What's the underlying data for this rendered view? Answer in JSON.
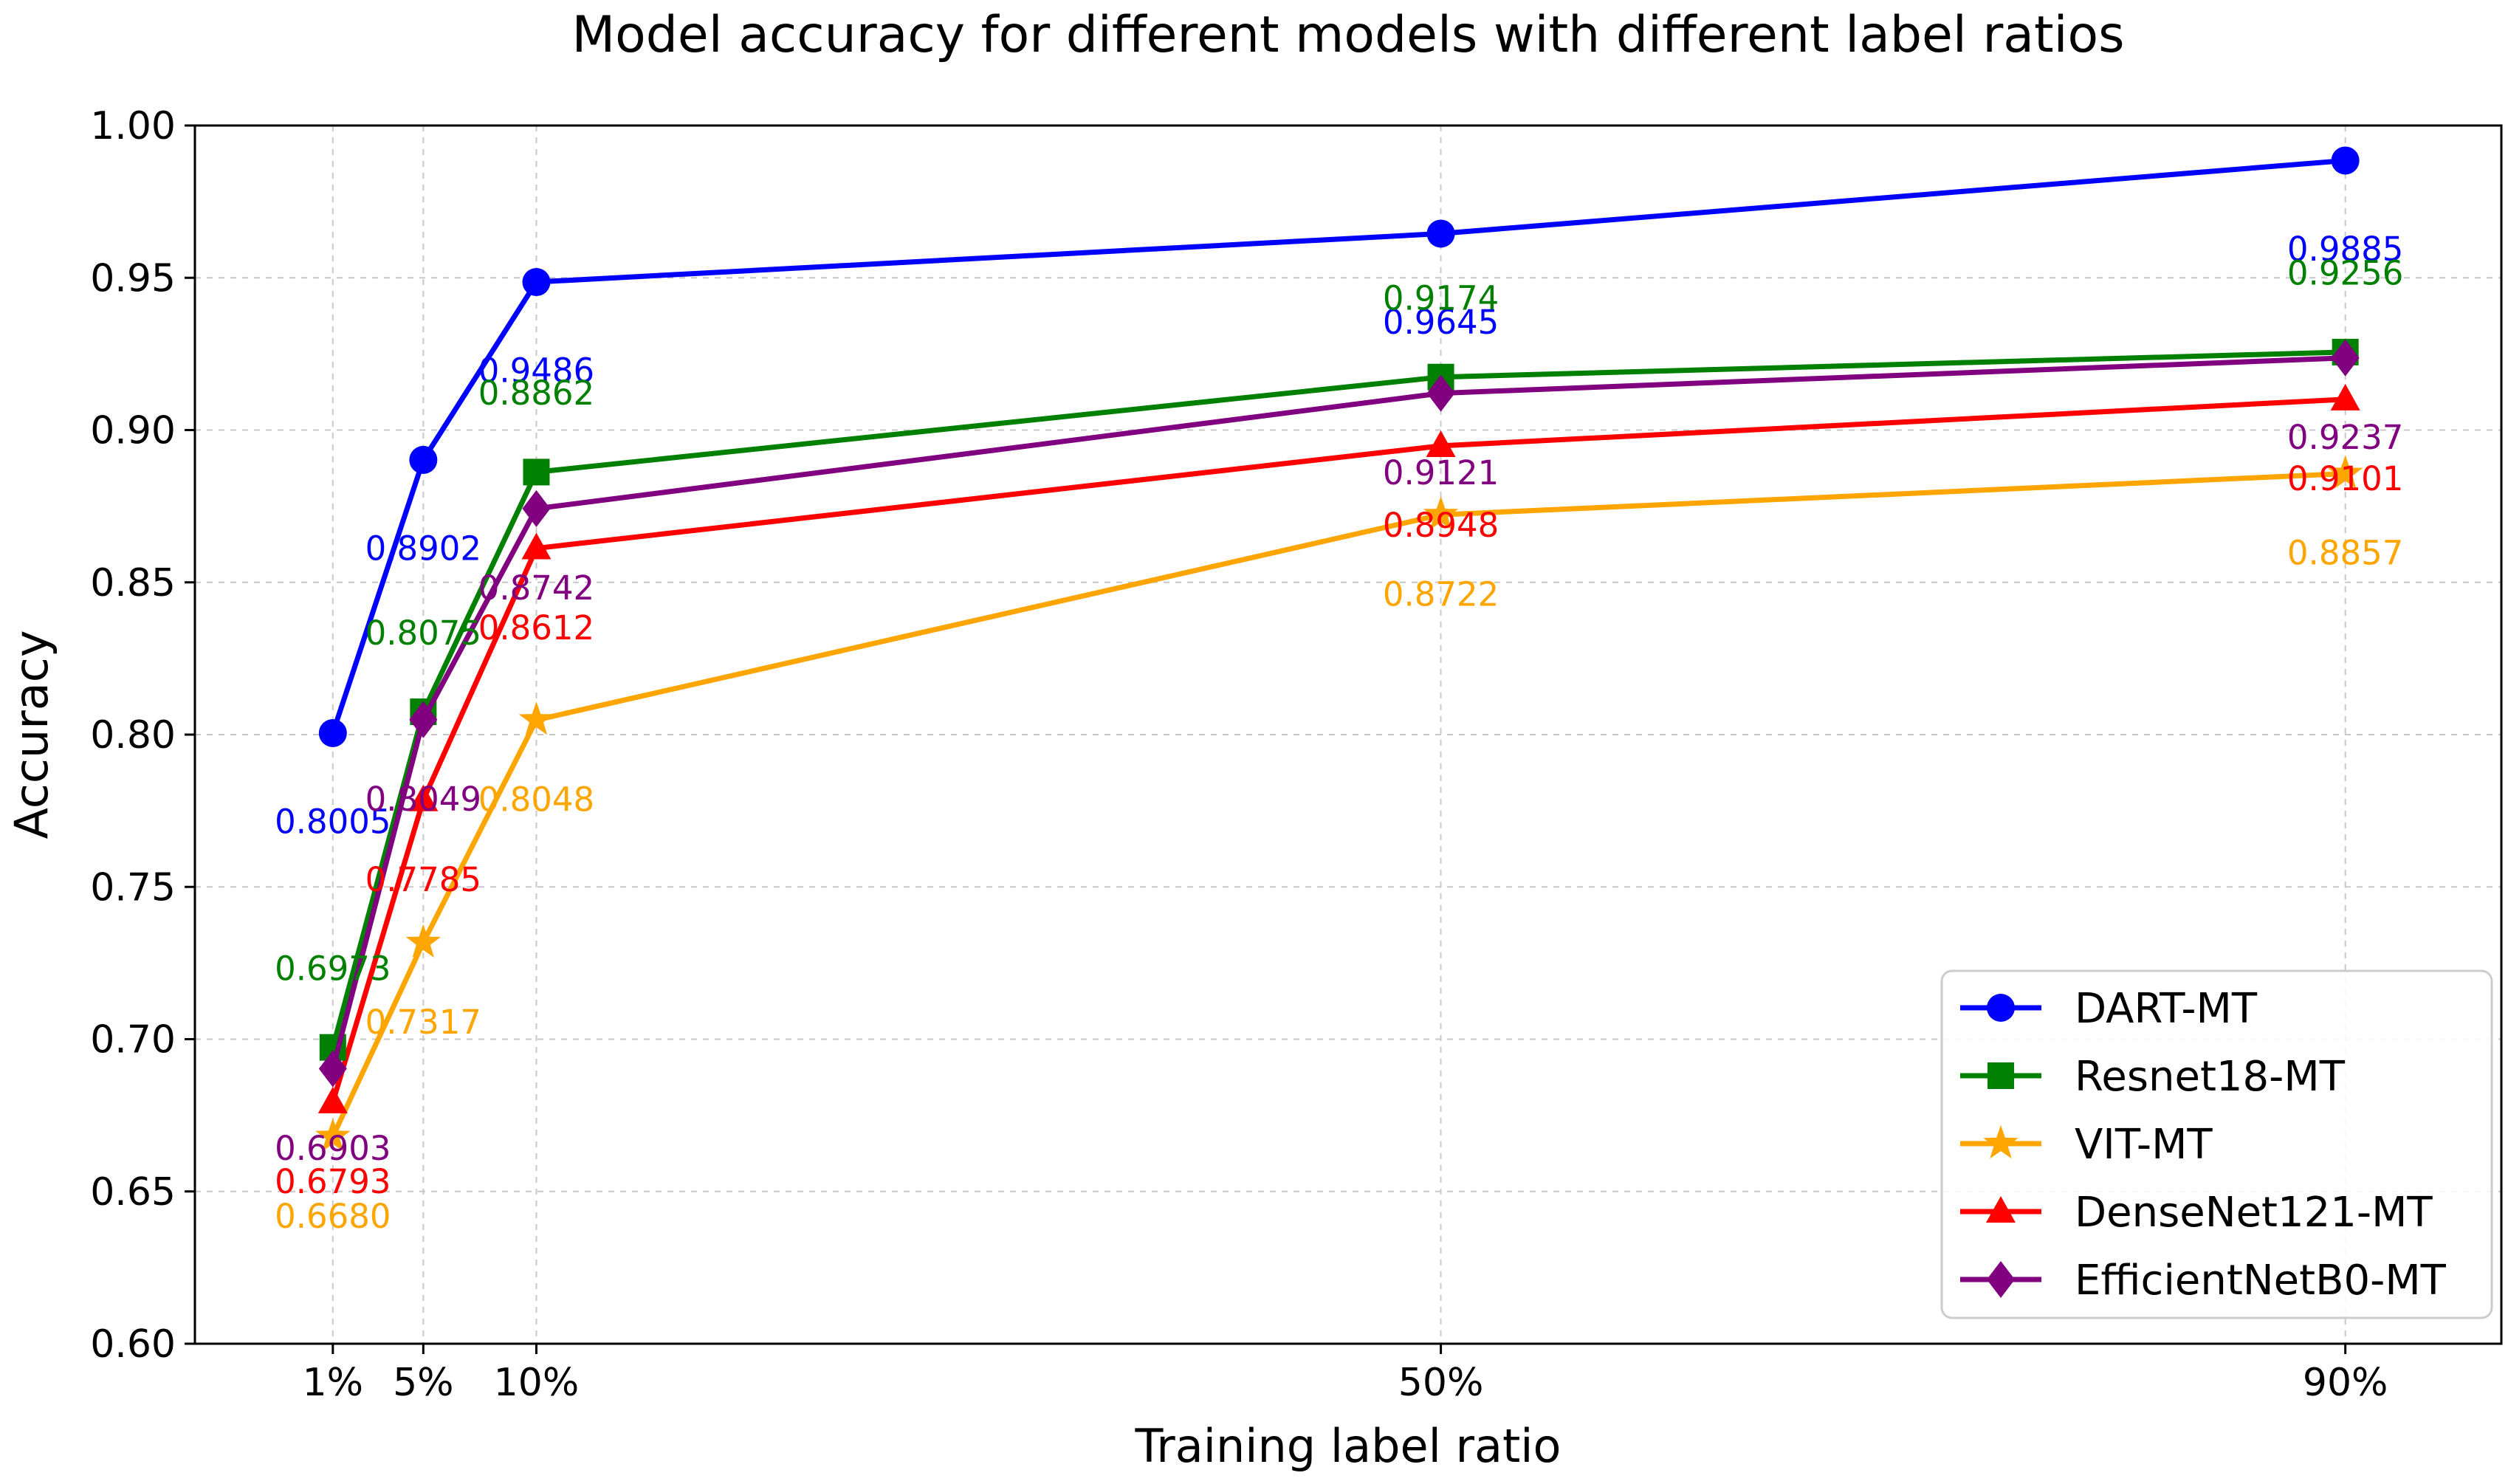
{
  "chart_data": {
    "type": "line",
    "title": "Model accuracy for different models with different label ratios",
    "xlabel": "Training label ratio",
    "ylabel": "Accuracy",
    "x": [
      1,
      5,
      10,
      50,
      90
    ],
    "x_tick_labels": [
      "1%",
      "5%",
      "10%",
      "50%",
      "90%"
    ],
    "ylim": [
      0.6,
      1.0
    ],
    "y_ticks": [
      0.6,
      0.65,
      0.7,
      0.75,
      0.8,
      0.85,
      0.9,
      0.95,
      1.0
    ],
    "y_tick_labels": [
      "0.60",
      "0.65",
      "0.70",
      "0.75",
      "0.80",
      "0.85",
      "0.90",
      "0.95",
      "1.00"
    ],
    "grid": true,
    "legend_position": "lower-right",
    "series": [
      {
        "name": "DART-MT",
        "color": "#0000ff",
        "marker": "circle",
        "values": [
          0.8005,
          0.8902,
          0.9486,
          0.9645,
          0.9885
        ],
        "labels": [
          "0.8005",
          "0.8902",
          "0.9486",
          "0.9645",
          "0.9885"
        ],
        "label_offsets": [
          -0.029,
          -0.029,
          -0.029,
          -0.029,
          -0.029
        ]
      },
      {
        "name": "Resnet18-MT",
        "color": "#008000",
        "marker": "square",
        "values": [
          0.6973,
          0.8075,
          0.8862,
          0.9174,
          0.9256
        ],
        "labels": [
          "0.6973",
          "0.8075",
          "0.8862",
          "0.9174",
          "0.9256"
        ],
        "label_offsets": [
          0.026,
          0.026,
          0.026,
          0.026,
          0.026
        ]
      },
      {
        "name": "VIT-MT",
        "color": "#ffa500",
        "marker": "star",
        "values": [
          0.668,
          0.7317,
          0.8048,
          0.8722,
          0.8857
        ],
        "labels": [
          "0.6680",
          "0.7317",
          "0.8048",
          "0.8722",
          "0.8857"
        ],
        "label_offsets": [
          -0.026,
          -0.026,
          -0.026,
          -0.026,
          -0.026
        ]
      },
      {
        "name": "DenseNet121-MT",
        "color": "#ff0000",
        "marker": "triangle",
        "values": [
          0.6793,
          0.7785,
          0.8612,
          0.8948,
          0.9101
        ],
        "labels": [
          "0.6793",
          "0.7785",
          "0.8612",
          "0.8948",
          "0.9101"
        ],
        "label_offsets": [
          -0.026,
          -0.026,
          -0.026,
          -0.026,
          -0.026
        ]
      },
      {
        "name": "EfficientNetB0-MT",
        "color": "#800080",
        "marker": "diamond",
        "values": [
          0.6903,
          0.8049,
          0.8742,
          0.9121,
          0.9237
        ],
        "labels": [
          "0.6903",
          "0.8049",
          "0.8742",
          "0.9121",
          "0.9237"
        ],
        "label_offsets": [
          -0.026,
          -0.026,
          -0.026,
          -0.026,
          -0.026
        ]
      }
    ]
  }
}
